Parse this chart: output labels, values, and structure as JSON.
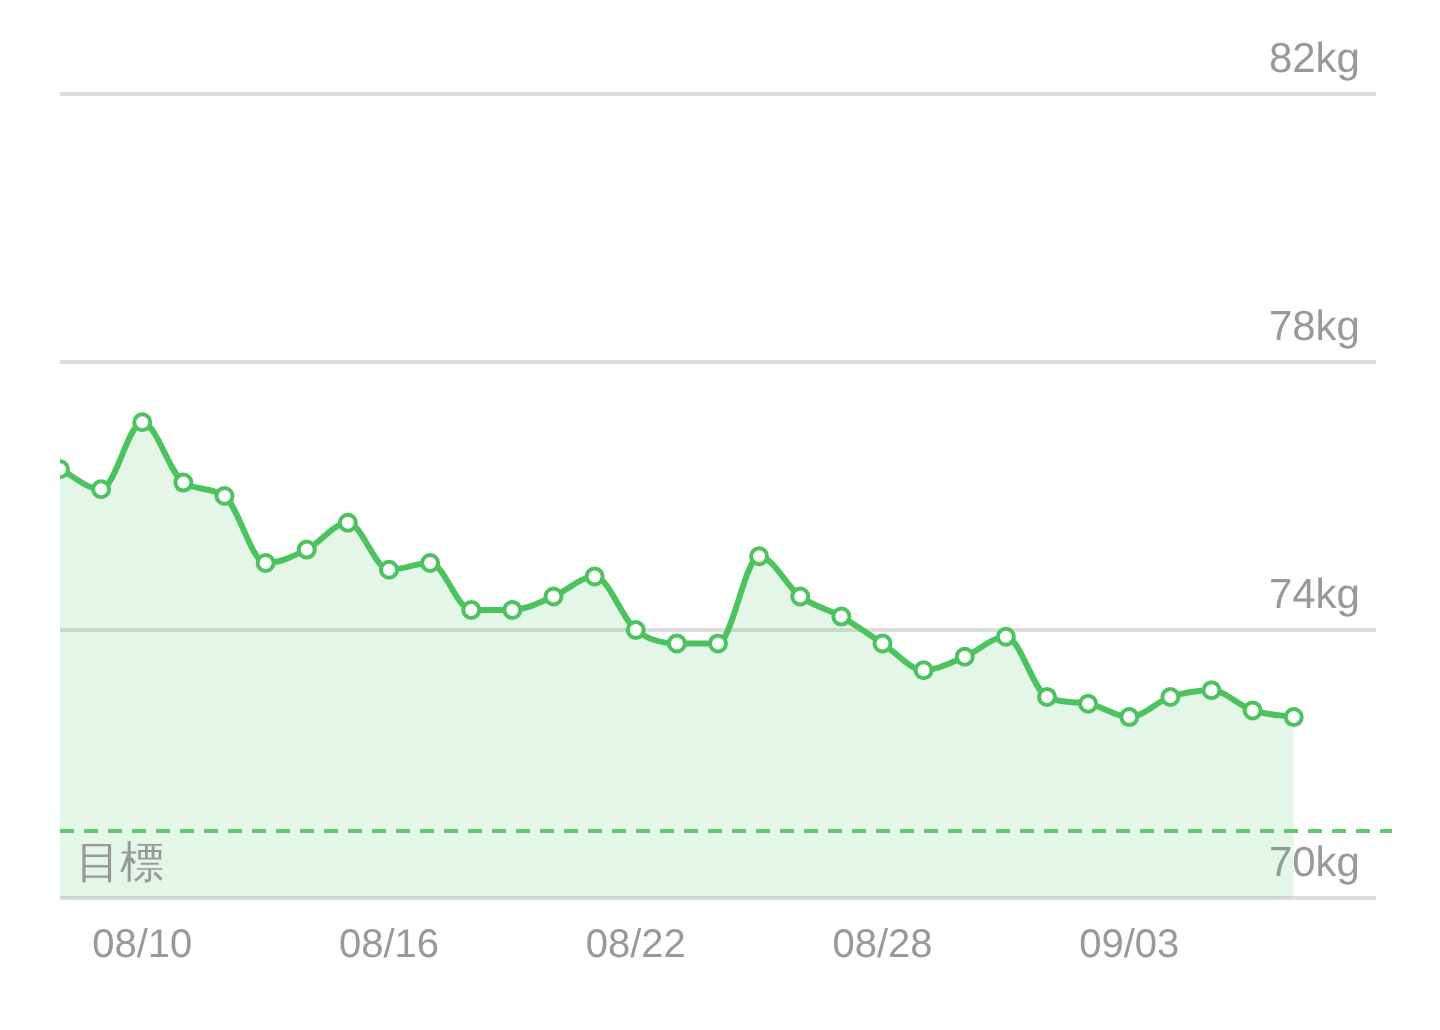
{
  "chart_data": {
    "type": "area",
    "x": [
      "--08-08",
      "--08-09",
      "--08-10",
      "--08-11",
      "--08-12",
      "--08-13",
      "--08-14",
      "--08-15",
      "--08-16",
      "--08-17",
      "--08-18",
      "--08-19",
      "--08-20",
      "--08-21",
      "--08-22",
      "--08-23",
      "--08-24",
      "--08-25",
      "--08-26",
      "--08-27",
      "--08-28",
      "--08-29",
      "--08-30",
      "--08-31",
      "--09-01",
      "--09-02",
      "--09-03",
      "--09-04",
      "--09-05",
      "--09-06",
      "--09-07"
    ],
    "series": [
      {
        "color": "#4cc35e",
        "values": [
          76.4,
          76.1,
          77.1,
          76.2,
          76.0,
          75.0,
          75.2,
          75.6,
          74.9,
          75.0,
          74.3,
          74.3,
          74.5,
          74.8,
          74.0,
          73.8,
          73.8,
          75.1,
          74.5,
          74.2,
          73.8,
          73.4,
          73.6,
          73.9,
          73.0,
          72.9,
          72.7,
          73.0,
          73.1,
          72.8,
          72.7
        ]
      }
    ],
    "xlim": [
      "--08-08",
      "--09-09"
    ],
    "xticks": [
      {
        "value": "--08-10",
        "label": "08/10"
      },
      {
        "value": "--08-16",
        "label": "08/16"
      },
      {
        "value": "--08-22",
        "label": "08/22"
      },
      {
        "value": "--08-28",
        "label": "08/28"
      },
      {
        "value": "--09-03",
        "label": "09/03"
      }
    ],
    "ylim": [
      70,
      82
    ],
    "yticks": [
      {
        "value": 70,
        "label": "70kg"
      },
      {
        "value": 74,
        "label": "74kg"
      },
      {
        "value": 78,
        "label": "78kg"
      },
      {
        "value": 82,
        "label": "82kg"
      }
    ],
    "ref_lines": [
      {
        "axis": "y",
        "value": 71,
        "label": "目標",
        "color": "#5fc96f",
        "line_style": "dashed"
      }
    ],
    "grid": "y",
    "legend": false,
    "marker": "circle",
    "line_style": "solid"
  }
}
